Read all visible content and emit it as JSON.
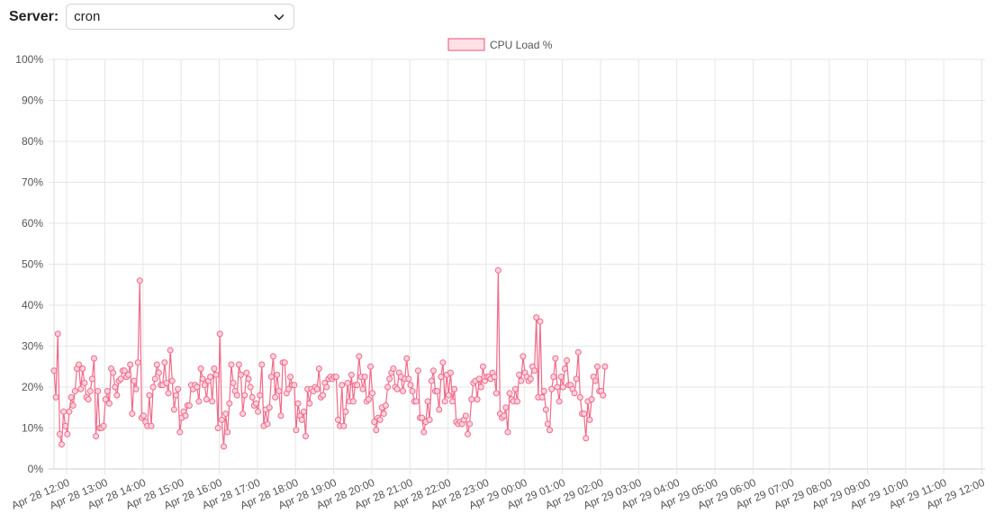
{
  "server": {
    "label": "Server:",
    "selected": "cron"
  },
  "icons": {
    "dropdown": "chevron-down-icon"
  },
  "colors": {
    "line": "#f06a8a",
    "point_fill": "#fbd3dc",
    "grid": "#e6e6e6"
  },
  "chart_data": {
    "type": "line",
    "legend": {
      "label": "CPU Load %",
      "position": "top-center"
    },
    "ylim": [
      0,
      100
    ],
    "y_ticks": [
      "0%",
      "10%",
      "20%",
      "30%",
      "40%",
      "50%",
      "60%",
      "70%",
      "80%",
      "90%",
      "100%"
    ],
    "x_range": [
      "Apr 28 11:40",
      "Apr 29 12:05"
    ],
    "x_ticks": [
      "Apr 28 12:00",
      "Apr 28 13:00",
      "Apr 28 14:00",
      "Apr 28 15:00",
      "Apr 28 16:00",
      "Apr 28 17:00",
      "Apr 28 18:00",
      "Apr 28 19:00",
      "Apr 28 20:00",
      "Apr 28 21:00",
      "Apr 28 22:00",
      "Apr 28 23:00",
      "Apr 29 00:00",
      "Apr 29 01:00",
      "Apr 29 02:00",
      "Apr 29 03:00",
      "Apr 29 04:00",
      "Apr 29 05:00",
      "Apr 29 06:00",
      "Apr 29 07:00",
      "Apr 29 08:00",
      "Apr 29 09:00",
      "Apr 29 10:00",
      "Apr 29 11:00",
      "Apr 29 12:00"
    ],
    "grid": true,
    "series": [
      {
        "name": "CPU Load %",
        "x_start": "Apr 28 11:40",
        "interval_minutes": 3,
        "values": [
          24,
          17.5,
          33,
          8.5,
          6,
          14,
          10.5,
          8.5,
          14,
          17.5,
          15.5,
          19,
          24.5,
          25.5,
          19.5,
          24.5,
          21,
          17.5,
          17,
          19,
          22,
          27,
          8,
          19,
          10,
          10,
          10.5,
          17,
          19,
          16,
          24.5,
          23.5,
          20,
          18,
          21.5,
          22,
          24,
          24,
          22.5,
          23,
          25.5,
          13.5,
          21.5,
          19.5,
          26,
          46,
          12.5,
          13,
          11.5,
          10.5,
          18,
          10.5,
          20,
          22,
          25.5,
          23.5,
          20.5,
          20.5,
          26,
          21,
          18.5,
          29,
          21.5,
          14.5,
          18,
          19.5,
          9,
          12.5,
          14,
          13,
          15.5,
          15.5,
          20.5,
          19.5,
          20.5,
          20,
          16.5,
          24.5,
          22,
          20.5,
          17,
          21.5,
          22.5,
          16.5,
          24.5,
          23,
          10,
          33,
          12,
          5.5,
          13.5,
          9,
          16,
          25.5,
          21,
          19,
          18,
          25.5,
          23,
          13.5,
          18,
          23.5,
          22,
          20,
          17.5,
          15.5,
          16,
          14,
          18,
          25.5,
          10.5,
          14.5,
          11,
          15,
          22.5,
          27.5,
          17.5,
          23,
          19,
          13,
          26,
          26,
          18.5,
          19.5,
          22.5,
          20.5,
          20.5,
          9.5,
          16,
          13,
          12,
          14,
          8,
          19.5,
          16,
          19.5,
          19,
          20,
          19.5,
          24.5,
          17.5,
          18,
          21,
          20,
          22,
          22.5,
          22,
          22.5,
          22.5,
          12,
          10.5,
          20.5,
          10.5,
          14,
          21,
          16.5,
          23,
          16.5,
          20.5,
          20.5,
          27.5,
          22.5,
          19.5,
          22.5,
          16.5,
          17,
          25,
          18.5,
          11.5,
          9.5,
          12.5,
          12,
          15,
          13.5,
          15.5,
          20,
          22,
          23.5,
          24.5,
          20,
          19.5,
          23.5,
          22.5,
          19,
          22,
          27,
          22,
          20.5,
          19,
          16.5,
          16.5,
          24,
          12.5,
          12.5,
          9,
          11.5,
          16.5,
          12,
          21.5,
          24,
          19,
          19,
          14.5,
          22.5,
          26,
          16.5,
          23,
          18,
          23.5,
          16.5,
          19.5,
          11.5,
          11,
          11.5,
          11,
          12,
          13,
          8.5,
          11,
          17,
          21,
          21.5,
          17,
          22,
          20,
          25,
          21.5,
          22.5,
          22.5,
          22,
          23.5,
          22.5,
          18.5,
          48.5,
          13.5,
          12.5,
          13,
          15,
          9,
          18.5,
          17,
          16.5,
          19.5,
          16.5,
          23,
          21.5,
          27.5,
          23.5,
          22.5,
          21.5,
          22,
          25,
          24,
          37,
          17.5,
          36,
          17.5,
          19,
          14.5,
          11,
          9.5,
          19.5,
          22.5,
          27,
          20,
          16.5,
          22.5,
          20,
          24.5,
          26.5,
          20.5,
          20.5,
          19.5,
          18.5,
          22,
          28.5,
          17.5,
          13.5,
          13.5,
          7.5,
          16.5,
          12,
          17,
          22.5,
          21.5,
          25,
          19,
          19,
          18,
          25
        ]
      }
    ]
  }
}
